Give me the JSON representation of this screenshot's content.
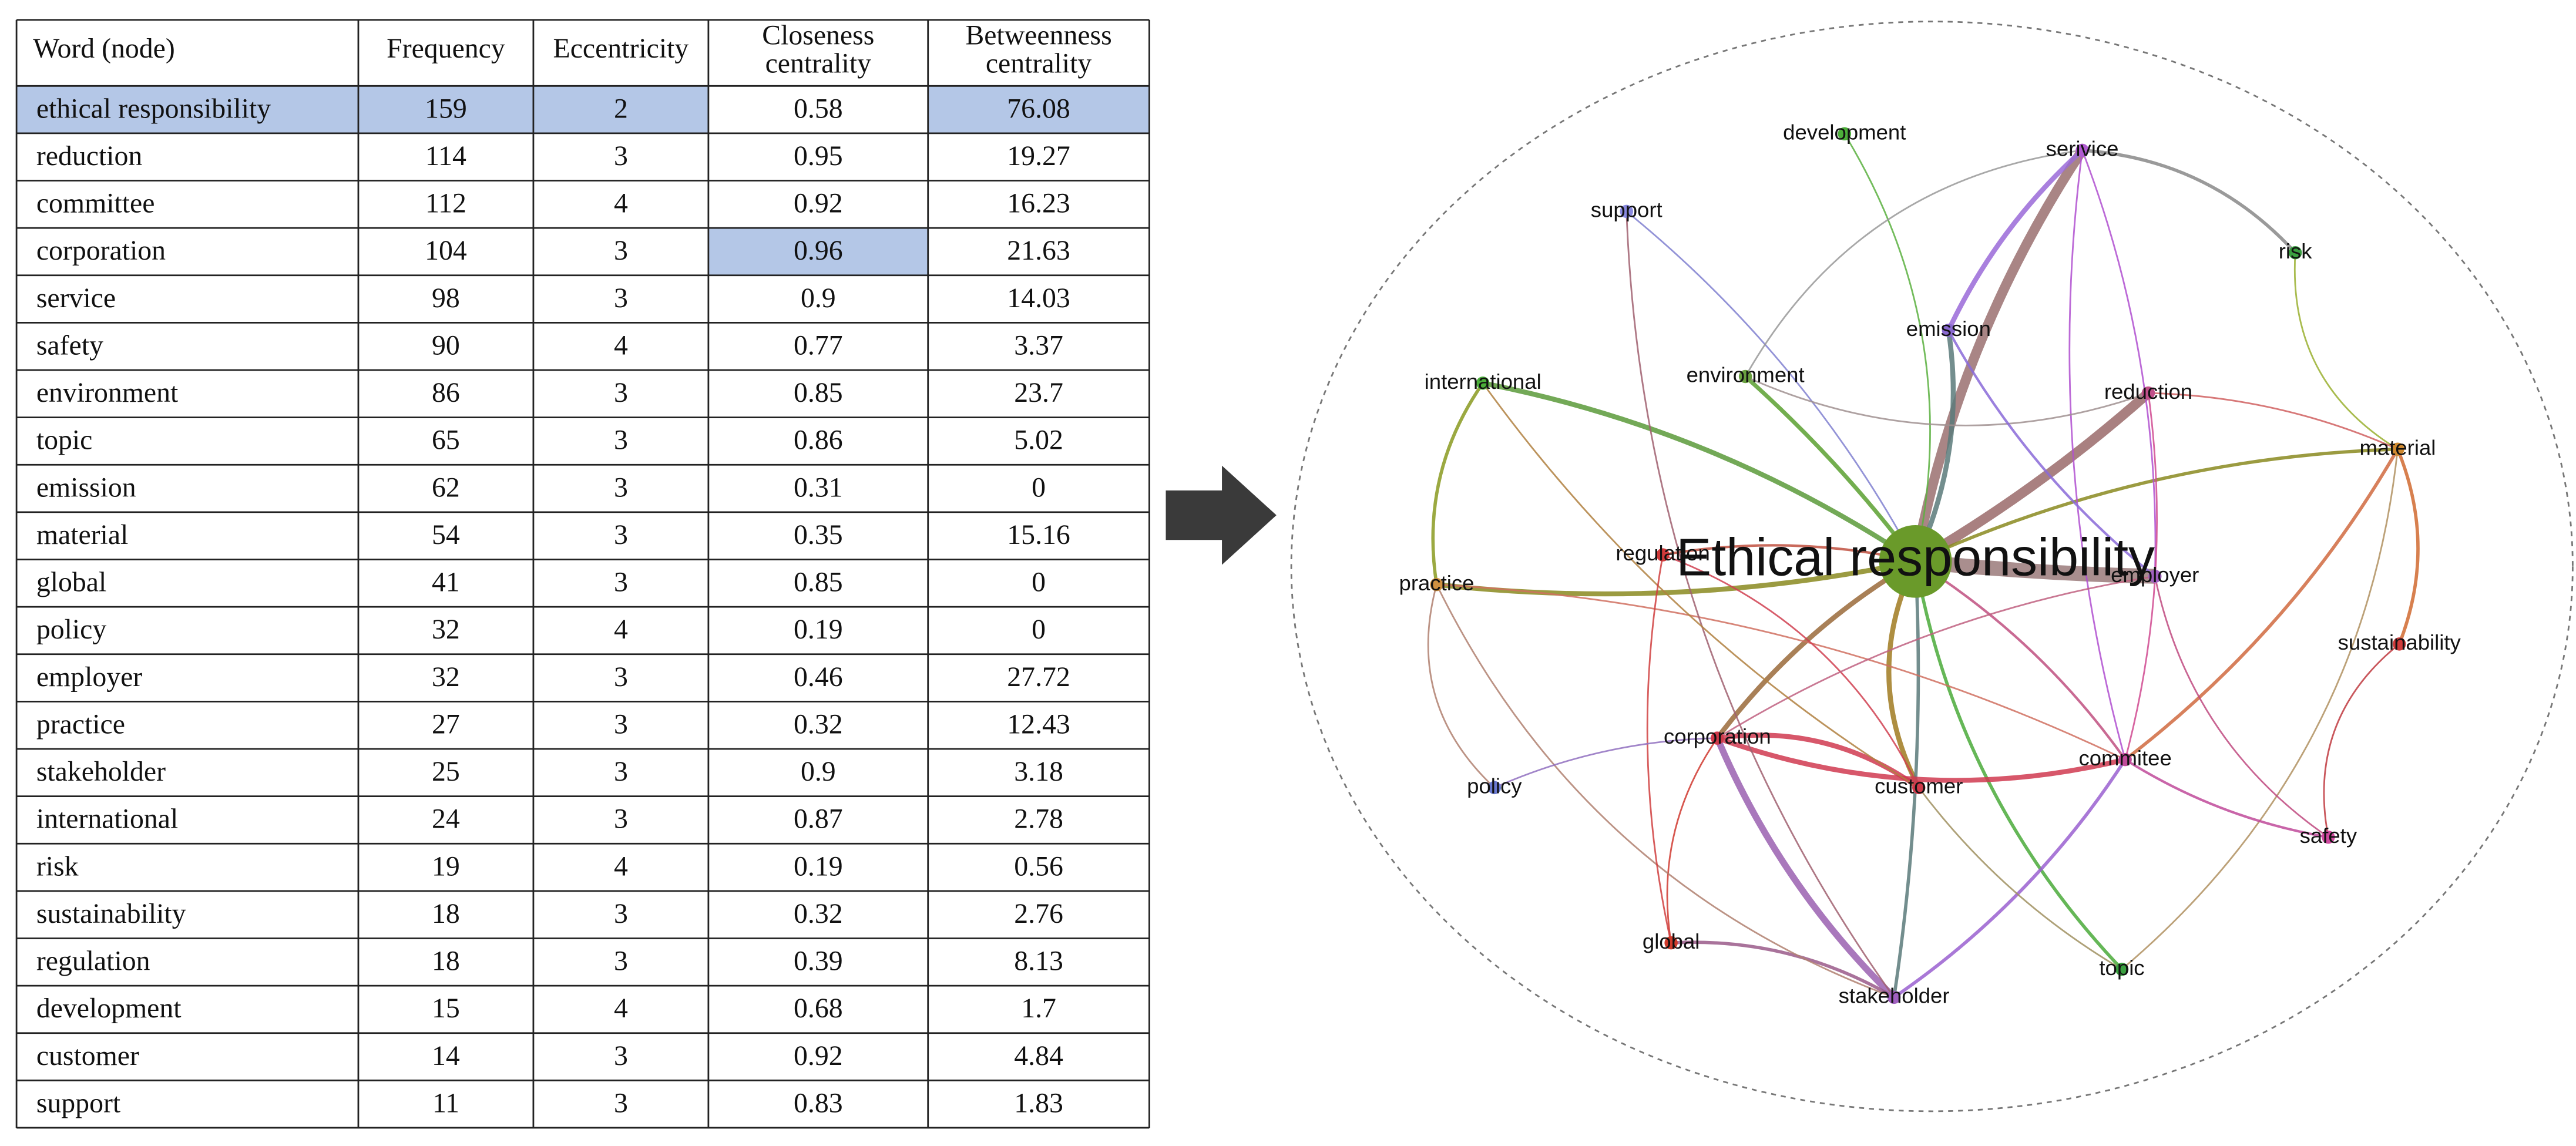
{
  "table": {
    "header": [
      "Word (node)",
      "Frequency",
      "Eccentricity",
      [
        "Closeness",
        "centrality"
      ],
      [
        "Betweenness",
        "centrality"
      ]
    ],
    "rows": [
      [
        "ethical responsibility",
        159,
        2,
        0.58,
        76.08
      ],
      [
        "reduction",
        114,
        3,
        0.95,
        19.27
      ],
      [
        "committee",
        112,
        4,
        0.92,
        16.23
      ],
      [
        "corporation",
        104,
        3,
        0.96,
        21.63
      ],
      [
        "service",
        98,
        3,
        0.9,
        14.03
      ],
      [
        "safety",
        90,
        4,
        0.77,
        3.37
      ],
      [
        "environment",
        86,
        3,
        0.85,
        23.7
      ],
      [
        "topic",
        65,
        3,
        0.86,
        5.02
      ],
      [
        "emission",
        62,
        3,
        0.31,
        0
      ],
      [
        "material",
        54,
        3,
        0.35,
        15.16
      ],
      [
        "global",
        41,
        3,
        0.85,
        0
      ],
      [
        "policy",
        32,
        4,
        0.19,
        0
      ],
      [
        "employer",
        32,
        3,
        0.46,
        27.72
      ],
      [
        "practice",
        27,
        3,
        0.32,
        12.43
      ],
      [
        "stakeholder",
        25,
        3,
        0.9,
        3.18
      ],
      [
        "international",
        24,
        3,
        0.87,
        2.78
      ],
      [
        "risk",
        19,
        4,
        0.19,
        0.56
      ],
      [
        "sustainability",
        18,
        3,
        0.32,
        2.76
      ],
      [
        "regulation",
        18,
        3,
        0.39,
        8.13
      ],
      [
        "development",
        15,
        4,
        0.68,
        1.7
      ],
      [
        "customer",
        14,
        3,
        0.92,
        4.84
      ],
      [
        "support",
        11,
        3,
        0.83,
        1.83
      ]
    ]
  },
  "network": {
    "nodes": [
      {
        "label": "Ethical responsibility",
        "color": "#6a9a2a"
      },
      {
        "label": "development",
        "color": "#4caf3a"
      },
      {
        "label": "serivice",
        "color": "#b05ad0"
      },
      {
        "label": "support",
        "color": "#8a8ae0"
      },
      {
        "label": "risk",
        "color": "#3aa040"
      },
      {
        "label": "emission",
        "color": "#8a6ad0"
      },
      {
        "label": "environment",
        "color": "#6aa040"
      },
      {
        "label": "international",
        "color": "#4caf3a"
      },
      {
        "label": "reduction",
        "color": "#c0508a"
      },
      {
        "label": "material",
        "color": "#d08a30"
      },
      {
        "label": "regulation",
        "color": "#d03a3a"
      },
      {
        "label": "employer",
        "color": "#a060c0"
      },
      {
        "label": "practice",
        "color": "#d09040"
      },
      {
        "label": "sustainability",
        "color": "#d03a3a"
      },
      {
        "label": "corporation",
        "color": "#d03a4a"
      },
      {
        "label": "commitee",
        "color": "#c04a9a"
      },
      {
        "label": "customer",
        "color": "#d03a4a"
      },
      {
        "label": "policy",
        "color": "#6a7ad0"
      },
      {
        "label": "safety",
        "color": "#d04aa0"
      },
      {
        "label": "global",
        "color": "#d03a2a"
      },
      {
        "label": "topic",
        "color": "#3aa040"
      },
      {
        "label": "stakeholder",
        "color": "#a060c0"
      }
    ]
  }
}
